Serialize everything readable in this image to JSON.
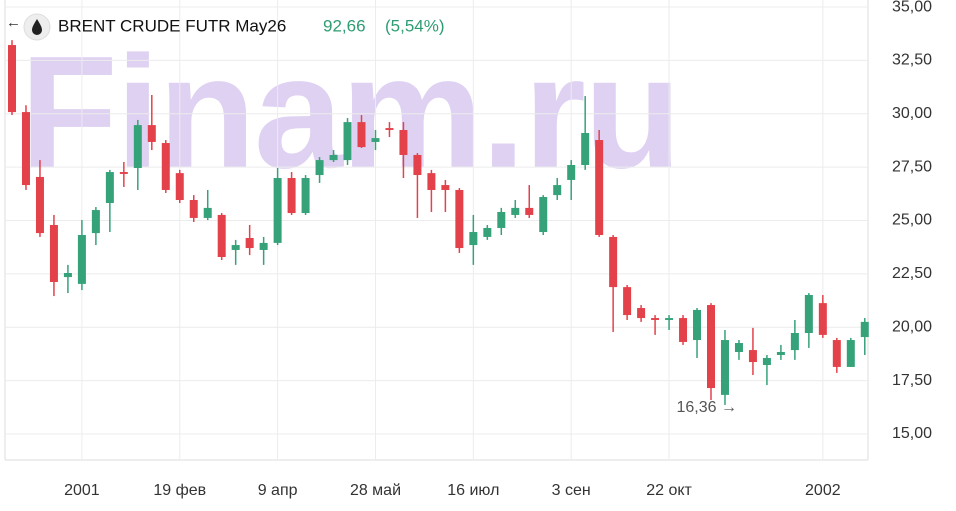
{
  "chart_data": {
    "type": "candlestick",
    "title": "BRENT CRUDE FUTR May26",
    "price": "92,66",
    "change": "(5,54%)",
    "watermark": "Finam.ru",
    "up_color": "#35a27a",
    "down_color": "#e3424b",
    "grid": true,
    "ylim": [
      13.78,
      35.33
    ],
    "yticks": [
      {
        "value": 15,
        "label": "15,00"
      },
      {
        "value": 17.5,
        "label": "17,50"
      },
      {
        "value": 20,
        "label": "20,00"
      },
      {
        "value": 22.5,
        "label": "22,50"
      },
      {
        "value": 25,
        "label": "25,00"
      },
      {
        "value": 27.5,
        "label": "27,50"
      },
      {
        "value": 30,
        "label": "30,00"
      },
      {
        "value": 32.5,
        "label": "32,50"
      },
      {
        "value": 35,
        "label": "35,00"
      }
    ],
    "xticks": [
      {
        "value": 5,
        "label": "2001"
      },
      {
        "value": 12,
        "label": "19 фев"
      },
      {
        "value": 19,
        "label": "9 апр"
      },
      {
        "value": 26,
        "label": "28 май"
      },
      {
        "value": 33,
        "label": "16 июл"
      },
      {
        "value": 40,
        "label": "3 сен"
      },
      {
        "value": 47,
        "label": "22 окт"
      },
      {
        "value": 58,
        "label": "2002"
      }
    ],
    "open": [
      33.22,
      30.08,
      27.04,
      24.79,
      22.35,
      22.03,
      24.41,
      25.82,
      27.27,
      27.46,
      29.47,
      28.63,
      27.22,
      25.96,
      25.12,
      25.26,
      23.62,
      24.18,
      23.62,
      23.95,
      26.99,
      25.35,
      27.13,
      27.83,
      27.83,
      29.61,
      28.68,
      29.33,
      29.24,
      28.07,
      27.22,
      26.66,
      26.43,
      23.85,
      24.23,
      24.65,
      25.26,
      25.59,
      24.46,
      26.19,
      26.9,
      27.6,
      28.77,
      24.23,
      21.88,
      20.9,
      20.43,
      20.34,
      20.43,
      19.4,
      21.04,
      16.83,
      18.84,
      18.93,
      18.23,
      18.7,
      18.93,
      19.73,
      21.13,
      19.4,
      18.14,
      19.54
    ],
    "high": [
      33.45,
      30.4,
      27.83,
      25.26,
      22.92,
      25.02,
      25.63,
      27.37,
      27.74,
      29.71,
      30.88,
      28.77,
      27.37,
      26.19,
      26.43,
      25.35,
      24.09,
      24.79,
      24.23,
      27.46,
      27.27,
      27.13,
      27.97,
      28.3,
      29.8,
      29.94,
      29.24,
      29.61,
      29.61,
      28.16,
      27.37,
      26.9,
      26.52,
      25.26,
      24.79,
      25.59,
      25.96,
      26.66,
      26.19,
      26.99,
      27.83,
      30.83,
      29.24,
      24.32,
      21.98,
      21.04,
      20.57,
      20.57,
      20.57,
      20.9,
      21.13,
      19.87,
      19.4,
      19.97,
      18.7,
      19.17,
      20.34,
      21.6,
      21.51,
      19.5,
      19.5,
      20.43
    ],
    "low": [
      29.94,
      26.43,
      24.23,
      21.46,
      21.6,
      21.74,
      23.85,
      24.46,
      26.57,
      26.43,
      28.3,
      26.29,
      25.82,
      24.93,
      25.02,
      23.15,
      22.92,
      23.38,
      22.92,
      23.85,
      25.26,
      25.26,
      26.76,
      27.74,
      27.6,
      28.4,
      28.3,
      28.91,
      26.99,
      25.12,
      25.4,
      25.4,
      23.48,
      22.92,
      24.09,
      24.32,
      25.12,
      25.12,
      24.32,
      25.96,
      25.96,
      27.37,
      24.23,
      19.78,
      20.34,
      20.25,
      19.64,
      19.87,
      19.17,
      18.56,
      16.59,
      16.36,
      18.47,
      17.76,
      17.29,
      18.47,
      18.47,
      19.03,
      19.5,
      17.86,
      18.14,
      18.7
    ],
    "close": [
      30.08,
      26.66,
      24.41,
      22.12,
      22.54,
      24.32,
      25.49,
      27.27,
      27.18,
      29.47,
      28.68,
      26.43,
      25.96,
      25.12,
      25.59,
      23.29,
      23.85,
      23.71,
      23.95,
      26.99,
      25.35,
      26.99,
      27.83,
      28.07,
      29.61,
      28.44,
      28.86,
      29.24,
      28.07,
      27.13,
      26.43,
      26.43,
      23.71,
      24.46,
      24.65,
      25.4,
      25.59,
      25.26,
      26.1,
      26.66,
      27.6,
      29.1,
      24.32,
      21.88,
      20.57,
      20.43,
      20.34,
      20.43,
      19.31,
      20.81,
      17.15,
      19.4,
      19.26,
      18.37,
      18.56,
      18.84,
      19.73,
      21.51,
      19.64,
      18.14,
      19.4,
      20.25
    ],
    "annotation": {
      "index": 51,
      "value": 16.36,
      "label": "16,36 →"
    }
  }
}
